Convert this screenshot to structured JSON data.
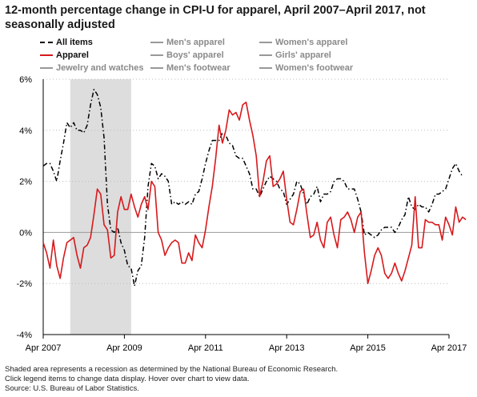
{
  "title": "12-month percentage change in CPI-U for apparel, April 2007–April 2017, not seasonally adjusted",
  "legend": {
    "items": [
      {
        "label": "All items",
        "active": true,
        "color": "#000000",
        "style": "dashdot"
      },
      {
        "label": "Men's apparel",
        "active": false,
        "color": "#999999",
        "style": "solid"
      },
      {
        "label": "Women's apparel",
        "active": false,
        "color": "#999999",
        "style": "solid"
      },
      {
        "label": "Apparel",
        "active": true,
        "color": "#d7191c",
        "style": "solid"
      },
      {
        "label": "Boys' apparel",
        "active": false,
        "color": "#999999",
        "style": "solid"
      },
      {
        "label": "Girls' apparel",
        "active": false,
        "color": "#999999",
        "style": "solid"
      },
      {
        "label": "Jewelry and watches",
        "active": false,
        "color": "#999999",
        "style": "solid"
      },
      {
        "label": "Men's footwear",
        "active": false,
        "color": "#999999",
        "style": "solid"
      },
      {
        "label": "Women's footwear",
        "active": false,
        "color": "#999999",
        "style": "solid"
      }
    ]
  },
  "notes": [
    "Shaded area represents a recession as determined by the National Bureau of Economic Research.",
    "Click legend items to change data display. Hover over chart to view data.",
    "Source: U.S. Bureau of Labor Statistics."
  ],
  "chart_data": {
    "type": "line",
    "title": "12-month percentage change in CPI-U for apparel, April 2007–April 2017, not seasonally adjusted",
    "xlabel": "",
    "ylabel": "",
    "x_ticks": [
      "Apr 2007",
      "Apr 2009",
      "Apr 2011",
      "Apr 2013",
      "Apr 2015",
      "Apr 2017"
    ],
    "y_ticks": [
      "6%",
      "4%",
      "2%",
      "0%",
      "-2%",
      "-4%"
    ],
    "ylim": [
      -4,
      6
    ],
    "xlim": [
      "2007-04",
      "2017-04"
    ],
    "grid": "horizontal-dotted",
    "recession": {
      "start": "2007-12",
      "end": "2009-06",
      "color": "#dddddd"
    },
    "series": [
      {
        "name": "All items",
        "color": "#000000",
        "style": "dashdot",
        "start": "2007-04",
        "values": [
          2.6,
          2.7,
          2.7,
          2.4,
          2.0,
          2.8,
          3.5,
          4.3,
          4.1,
          4.3,
          4.0,
          4.0,
          3.9,
          4.2,
          5.0,
          5.6,
          5.4,
          4.9,
          3.7,
          1.1,
          0.1,
          0.0,
          0.2,
          -0.4,
          -0.7,
          -1.3,
          -1.4,
          -2.1,
          -1.5,
          -1.3,
          -0.2,
          1.8,
          2.7,
          2.6,
          2.1,
          2.3,
          2.2,
          2.0,
          1.1,
          1.2,
          1.1,
          1.2,
          1.1,
          1.2,
          1.1,
          1.5,
          1.6,
          2.1,
          2.7,
          3.2,
          3.6,
          3.6,
          3.6,
          3.9,
          3.8,
          3.5,
          3.4,
          3.0,
          2.9,
          2.9,
          2.6,
          2.3,
          1.7,
          1.7,
          1.4,
          1.7,
          2.0,
          2.2,
          2.1,
          2.0,
          1.7,
          1.6,
          1.1,
          1.3,
          1.5,
          2.0,
          1.9,
          1.5,
          1.1,
          1.4,
          1.5,
          1.8,
          1.2,
          1.5,
          1.5,
          1.6,
          2.0,
          2.1,
          2.1,
          2.0,
          1.7,
          1.7,
          1.7,
          1.3,
          0.8,
          -0.1,
          0.0,
          -0.1,
          -0.2,
          -0.1,
          0.1,
          0.2,
          0.2,
          0.2,
          0.0,
          0.2,
          0.5,
          0.7,
          1.4,
          1.0,
          0.9,
          1.1,
          1.0,
          1.0,
          0.8,
          1.1,
          1.5,
          1.5,
          1.6,
          1.7,
          2.1,
          2.5,
          2.7,
          2.4,
          2.2
        ]
      },
      {
        "name": "Apparel",
        "color": "#d7191c",
        "style": "solid",
        "start": "2007-04",
        "values": [
          -0.4,
          -0.8,
          -1.4,
          -0.3,
          -1.3,
          -1.8,
          -1.0,
          -0.4,
          -0.3,
          -0.2,
          -0.9,
          -1.4,
          -0.6,
          -0.5,
          -0.2,
          0.7,
          1.7,
          1.5,
          0.3,
          0.1,
          -1.0,
          -0.9,
          0.8,
          1.4,
          0.9,
          0.9,
          1.5,
          1.0,
          0.6,
          1.1,
          1.4,
          0.9,
          2.0,
          1.8,
          0.0,
          -0.3,
          -0.9,
          -0.6,
          -0.4,
          -0.3,
          -0.4,
          -1.2,
          -1.2,
          -0.8,
          -1.1,
          -0.1,
          -0.4,
          -0.6,
          0.1,
          1.0,
          1.8,
          2.9,
          4.2,
          3.5,
          4.0,
          4.8,
          4.6,
          4.7,
          4.4,
          5.0,
          5.1,
          4.4,
          3.8,
          3.0,
          1.4,
          2.0,
          2.8,
          3.0,
          1.8,
          1.9,
          2.1,
          2.4,
          1.3,
          0.4,
          0.3,
          0.9,
          1.6,
          1.7,
          0.7,
          -0.2,
          -0.1,
          0.4,
          -0.3,
          -0.6,
          0.4,
          0.6,
          -0.1,
          -0.6,
          0.5,
          0.6,
          0.8,
          0.5,
          0.0,
          0.6,
          0.8,
          -0.8,
          -2.0,
          -1.5,
          -0.9,
          -0.6,
          -0.9,
          -1.6,
          -1.8,
          -1.6,
          -1.2,
          -1.6,
          -1.9,
          -1.5,
          -1.0,
          -0.5,
          1.4,
          -0.6,
          -0.6,
          0.5,
          0.4,
          0.4,
          0.3,
          0.3,
          -0.3,
          0.6,
          0.3,
          -0.1,
          1.0,
          0.4,
          0.6,
          0.5
        ]
      }
    ]
  }
}
